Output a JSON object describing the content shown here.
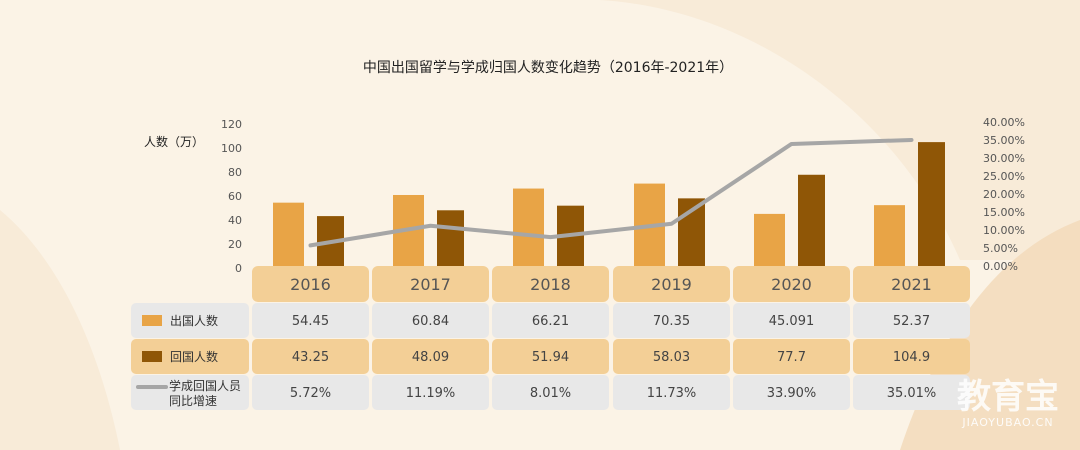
{
  "chart_data": {
    "type": "bar",
    "title": "中国出国留学与学成归国人数变化趋势（2016年-2021年）",
    "ylabel": "人数（万）",
    "ylim": [
      0,
      120
    ],
    "y_ticks": [
      "120",
      "100",
      "80",
      "60",
      "40",
      "20",
      "0"
    ],
    "y2lim": [
      0,
      40
    ],
    "y2_ticks": [
      "40.00%",
      "35.00%",
      "30.00%",
      "25.00%",
      "20.00%",
      "15.00%",
      "10.00%",
      "5.00%",
      "0.00%"
    ],
    "categories": [
      "2016",
      "2017",
      "2018",
      "2019",
      "2020",
      "2021"
    ],
    "series": [
      {
        "name": "出国人数",
        "type": "bar",
        "color": "#e8a446",
        "values": [
          54.45,
          60.84,
          66.21,
          70.35,
          45.091,
          52.37
        ],
        "labels": [
          "54.45",
          "60.84",
          "66.21",
          "70.35",
          "45.091",
          "52.37"
        ]
      },
      {
        "name": "回国人数",
        "type": "bar",
        "color": "#8f5606",
        "values": [
          43.25,
          48.09,
          51.94,
          58.03,
          77.7,
          104.9
        ],
        "labels": [
          "43.25",
          "48.09",
          "51.94",
          "58.03",
          "77.7",
          "104.9"
        ]
      },
      {
        "name": "学成回国人员同比增速",
        "name_lines": [
          "学成回国人员",
          "同比增速"
        ],
        "type": "line",
        "axis": "right",
        "color": "#a6a6a6",
        "values": [
          5.72,
          11.19,
          8.01,
          11.73,
          33.9,
          35.01
        ],
        "labels": [
          "5.72%",
          "11.19%",
          "8.01%",
          "11.73%",
          "33.90%",
          "35.01%"
        ]
      }
    ]
  },
  "watermark": {
    "brand": "教育宝",
    "domain": "JIAOYUBAO.CN"
  }
}
